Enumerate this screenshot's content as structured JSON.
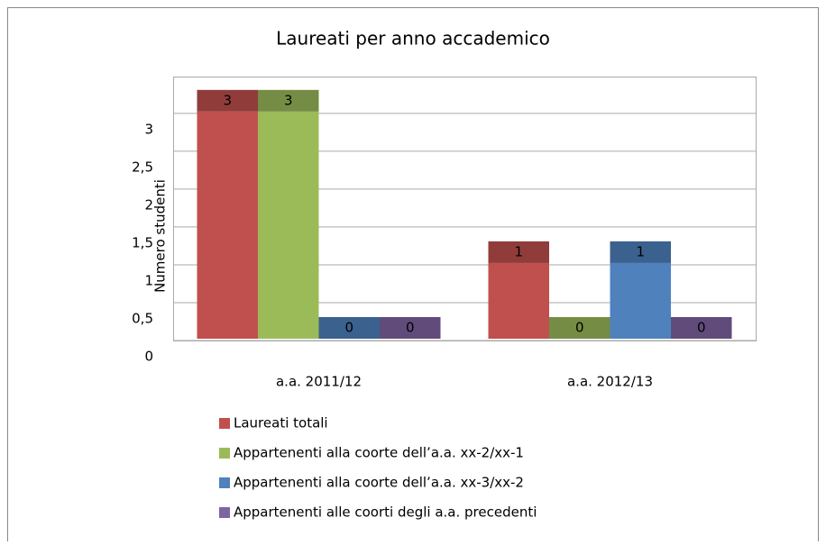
{
  "chart_data": {
    "type": "bar",
    "title": "Laureati per anno accademico",
    "y_label": "Numero studenti",
    "categories": [
      "a.a. 2011/12",
      "a.a. 2012/13"
    ],
    "series": [
      {
        "name": "Laureati totali",
        "color": "#c0504d",
        "values": [
          3,
          1
        ]
      },
      {
        "name": "Appartenenti alla coorte dell’a.a. xx-2/xx-1",
        "color": "#9bbb59",
        "values": [
          3,
          0
        ]
      },
      {
        "name": "Appartenenti alla coorte dell’a.a. xx-3/xx-2",
        "color": "#4f81bd",
        "values": [
          0,
          1
        ]
      },
      {
        "name": "Appartenenti alle coorti degli a.a. precedenti",
        "color": "#8064a2",
        "values": [
          0,
          0
        ]
      }
    ],
    "ylim": [
      0,
      3.45
    ],
    "yticks": [
      0,
      {
        "value": 0.5,
        "label": "0,5"
      },
      1,
      {
        "value": 1.5,
        "label": "1,5"
      },
      2,
      {
        "value": 2.5,
        "label": "2,5"
      },
      3
    ],
    "grid": true,
    "legend": "bottom"
  }
}
